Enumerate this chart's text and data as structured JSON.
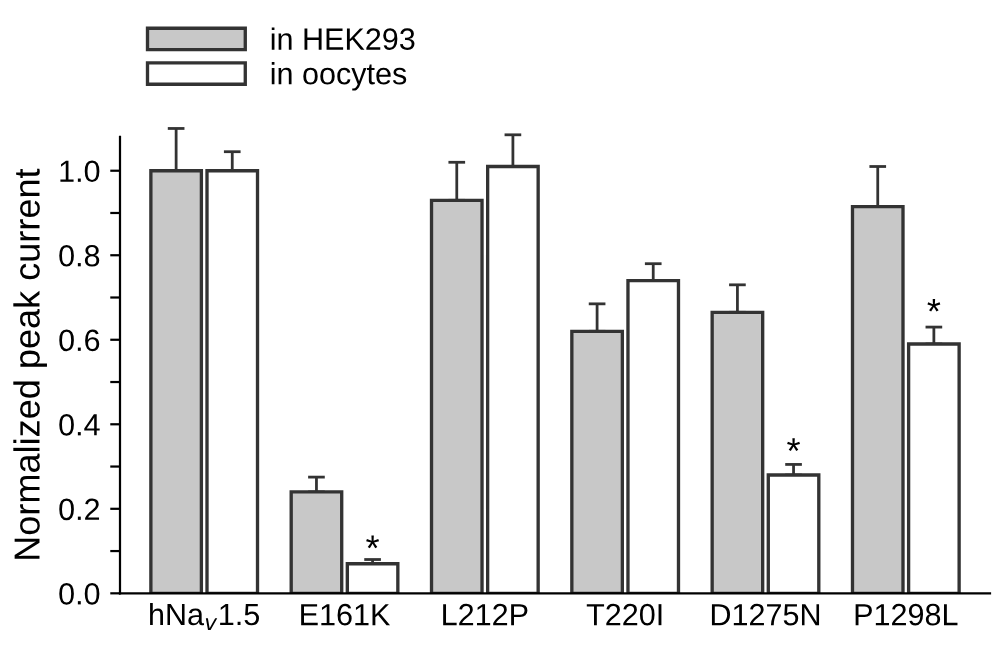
{
  "chart_data": {
    "type": "bar",
    "ylabel": "Normalized peak current",
    "categories": [
      "hNa$_{v}$1.5",
      "E161K",
      "L212P",
      "T220I",
      "D1275N",
      "P1298L"
    ],
    "series": [
      {
        "name": "in HEK293",
        "color": "#c8c8c8",
        "values": [
          1.0,
          0.24,
          0.93,
          0.62,
          0.665,
          0.915
        ],
        "errors": [
          [
            1.0,
            1.1
          ],
          [
            0.24,
            0.275
          ],
          [
            0.93,
            1.02
          ],
          [
            0.62,
            0.685
          ],
          [
            0.665,
            0.73
          ],
          [
            0.915,
            1.01
          ]
        ]
      },
      {
        "name": "in oocytes",
        "color": "#ffffff",
        "values": [
          1.0,
          0.07,
          1.01,
          0.74,
          0.28,
          0.59
        ],
        "errors": [
          [
            1.0,
            1.045
          ],
          [
            0.07,
            0.08
          ],
          [
            1.01,
            1.085
          ],
          [
            0.74,
            0.78
          ],
          [
            0.28,
            0.305
          ],
          [
            0.59,
            0.63
          ]
        ]
      }
    ],
    "ylim": [
      0,
      1.08
    ],
    "yticks": [
      {
        "value": 0,
        "label": "0.0"
      },
      {
        "value": 0.1,
        "label": null
      },
      0.2,
      {
        "value": 0.3,
        "label": null
      },
      0.4,
      {
        "value": 0.5,
        "label": null
      },
      0.6,
      {
        "value": 0.7,
        "label": null
      },
      0.8,
      {
        "value": 0.9,
        "label": null
      },
      {
        "value": 1,
        "label": "1.0"
      }
    ],
    "annotations": [
      {
        "text": "*",
        "x": "E161K",
        "y": 0.1
      },
      {
        "text": "*",
        "x": "D1275N",
        "y": 0.33
      },
      {
        "text": "*",
        "x": "P1298L",
        "y": 0.66
      }
    ],
    "legend": "top left",
    "grid": false
  }
}
